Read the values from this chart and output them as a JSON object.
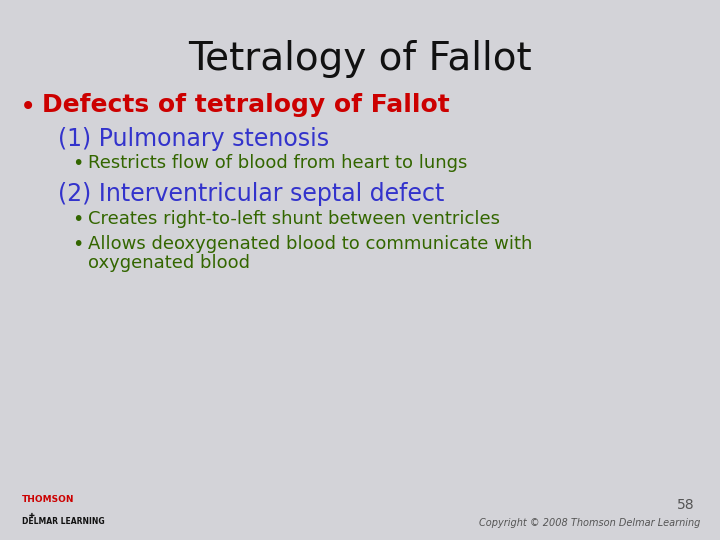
{
  "title": "Tetralogy of Fallot",
  "title_color": "#111111",
  "title_fontsize": 28,
  "background_color": "#d3d3d8",
  "bullet1_text": "Defects of tetralogy of Fallot",
  "bullet1_color": "#cc0000",
  "bullet1_fontsize": 18,
  "sub1_heading": "(1) Pulmonary stenosis",
  "sub1_color": "#3333cc",
  "sub1_fontsize": 17,
  "sub1_bullet1": "Restricts flow of blood from heart to lungs",
  "sub1_bullet1_color": "#336600",
  "sub1_bullet1_fontsize": 13,
  "sub2_heading": "(2) Interventricular septal defect",
  "sub2_color": "#3333cc",
  "sub2_fontsize": 17,
  "sub2_bullet1": "Creates right-to-left shunt between ventricles",
  "sub2_bullet1_color": "#336600",
  "sub2_bullet1_fontsize": 13,
  "sub2_bullet2_line1": "Allows deoxygenated blood to communicate with",
  "sub2_bullet2_line2": "oxygenated blood",
  "sub2_bullet2_color": "#336600",
  "sub2_bullet2_fontsize": 13,
  "page_number": "58",
  "copyright_text": "Copyright © 2008 Thomson Delmar Learning",
  "footer_color": "#555555",
  "footer_fontsize": 7,
  "thomson_color": "#cc0000",
  "delmar_color": "#111111"
}
